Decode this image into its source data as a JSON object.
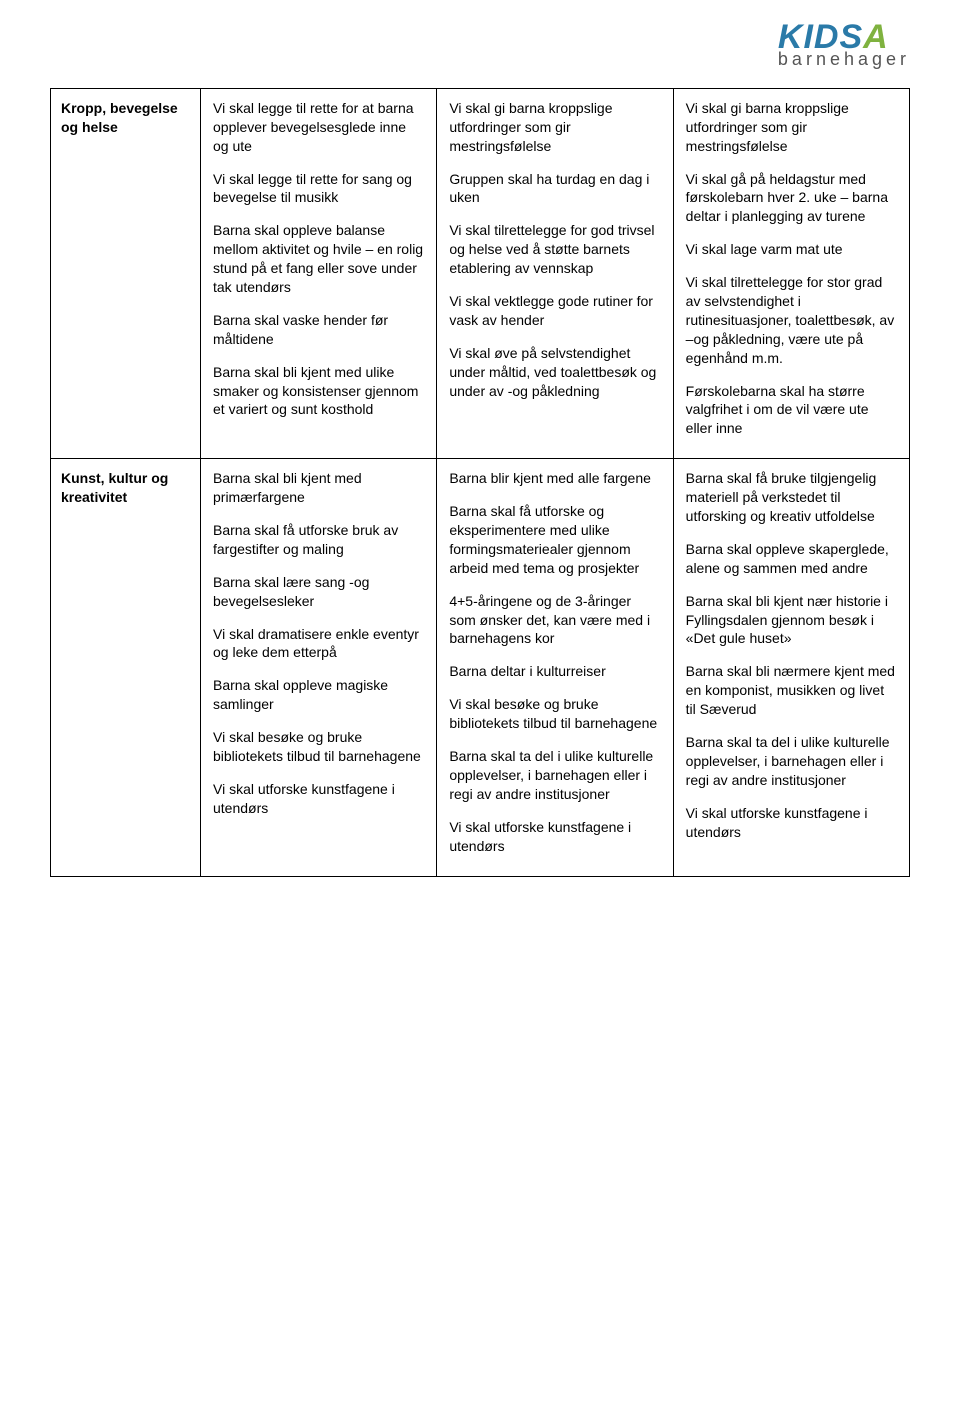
{
  "logo": {
    "main_part1": "KIDS",
    "main_part2": "A",
    "sub": "barnehager",
    "color_blue": "#2a7aa8",
    "color_green": "#7fb23f",
    "color_sub": "#555555"
  },
  "table": {
    "rows": [
      {
        "label": "Kropp, bevegelse og helse",
        "col1": [
          "Vi skal legge til rette for at barna opplever bevegelsesglede inne og ute",
          "Vi skal legge til rette for sang og bevegelse til musikk",
          "Barna skal oppleve balanse mellom aktivitet og hvile – en rolig stund på et fang eller sove under tak utendørs",
          "Barna skal vaske hender før måltidene",
          "Barna skal bli kjent med ulike smaker og konsistenser gjennom et variert og sunt kosthold"
        ],
        "col2": [
          "Vi skal gi barna kroppslige utfordringer som gir mestringsfølelse",
          "Gruppen skal ha turdag en dag i uken",
          "Vi skal tilrettelegge for god trivsel og helse ved å støtte barnets etablering av vennskap",
          "Vi skal vektlegge gode rutiner for vask av hender",
          "Vi skal øve på selvstendighet under måltid, ved toalettbesøk og under av -og påkledning"
        ],
        "col3": [
          "Vi skal gi barna kroppslige utfordringer som gir mestringsfølelse",
          "Vi skal gå på heldagstur med førskolebarn hver 2. uke – barna deltar i planlegging av turene",
          "Vi skal lage varm mat ute",
          "Vi skal tilrettelegge for stor grad av selvstendighet i rutinesituasjoner, toalettbesøk, av –og påkledning, være ute på egenhånd m.m.",
          "Førskolebarna skal ha større valgfrihet i om de vil være ute eller inne"
        ]
      },
      {
        "label": "Kunst, kultur og kreativitet",
        "col1": [
          "Barna skal bli kjent med primærfargene",
          "Barna skal få utforske bruk av fargestifter og maling",
          "Barna skal lære sang -og bevegelsesleker",
          "Vi skal dramatisere enkle eventyr og leke dem etterpå",
          "Barna skal oppleve magiske samlinger",
          "Vi skal besøke og bruke bibliotekets tilbud til barnehagene",
          "Vi skal utforske kunstfagene i utendørs"
        ],
        "col2": [
          "Barna blir kjent med alle fargene",
          "Barna skal få utforske og eksperimentere med ulike formingsmateriealer gjennom arbeid med tema og prosjekter",
          "4+5-åringene og de 3-åringer som ønsker det, kan være med i barnehagens kor",
          "Barna deltar i kulturreiser",
          "Vi skal besøke og bruke bibliotekets tilbud til barnehagene",
          "Barna skal ta del i ulike kulturelle opplevelser, i barnehagen eller i regi av andre institusjoner",
          "Vi skal utforske kunstfagene i utendørs"
        ],
        "col3": [
          "Barna skal få bruke tilgjengelig materiell på verkstedet til utforsking og kreativ utfoldelse",
          "Barna skal oppleve skaperglede, alene og sammen med andre",
          "Barna skal bli kjent nær historie i Fyllingsdalen gjennom besøk i «Det gule huset»",
          "Barna skal bli nærmere kjent med en komponist, musikken og livet til Sæverud",
          "Barna skal ta del i ulike kulturelle opplevelser, i barnehagen eller i regi av andre institusjoner",
          "Vi skal utforske kunstfagene i utendørs"
        ]
      }
    ]
  }
}
